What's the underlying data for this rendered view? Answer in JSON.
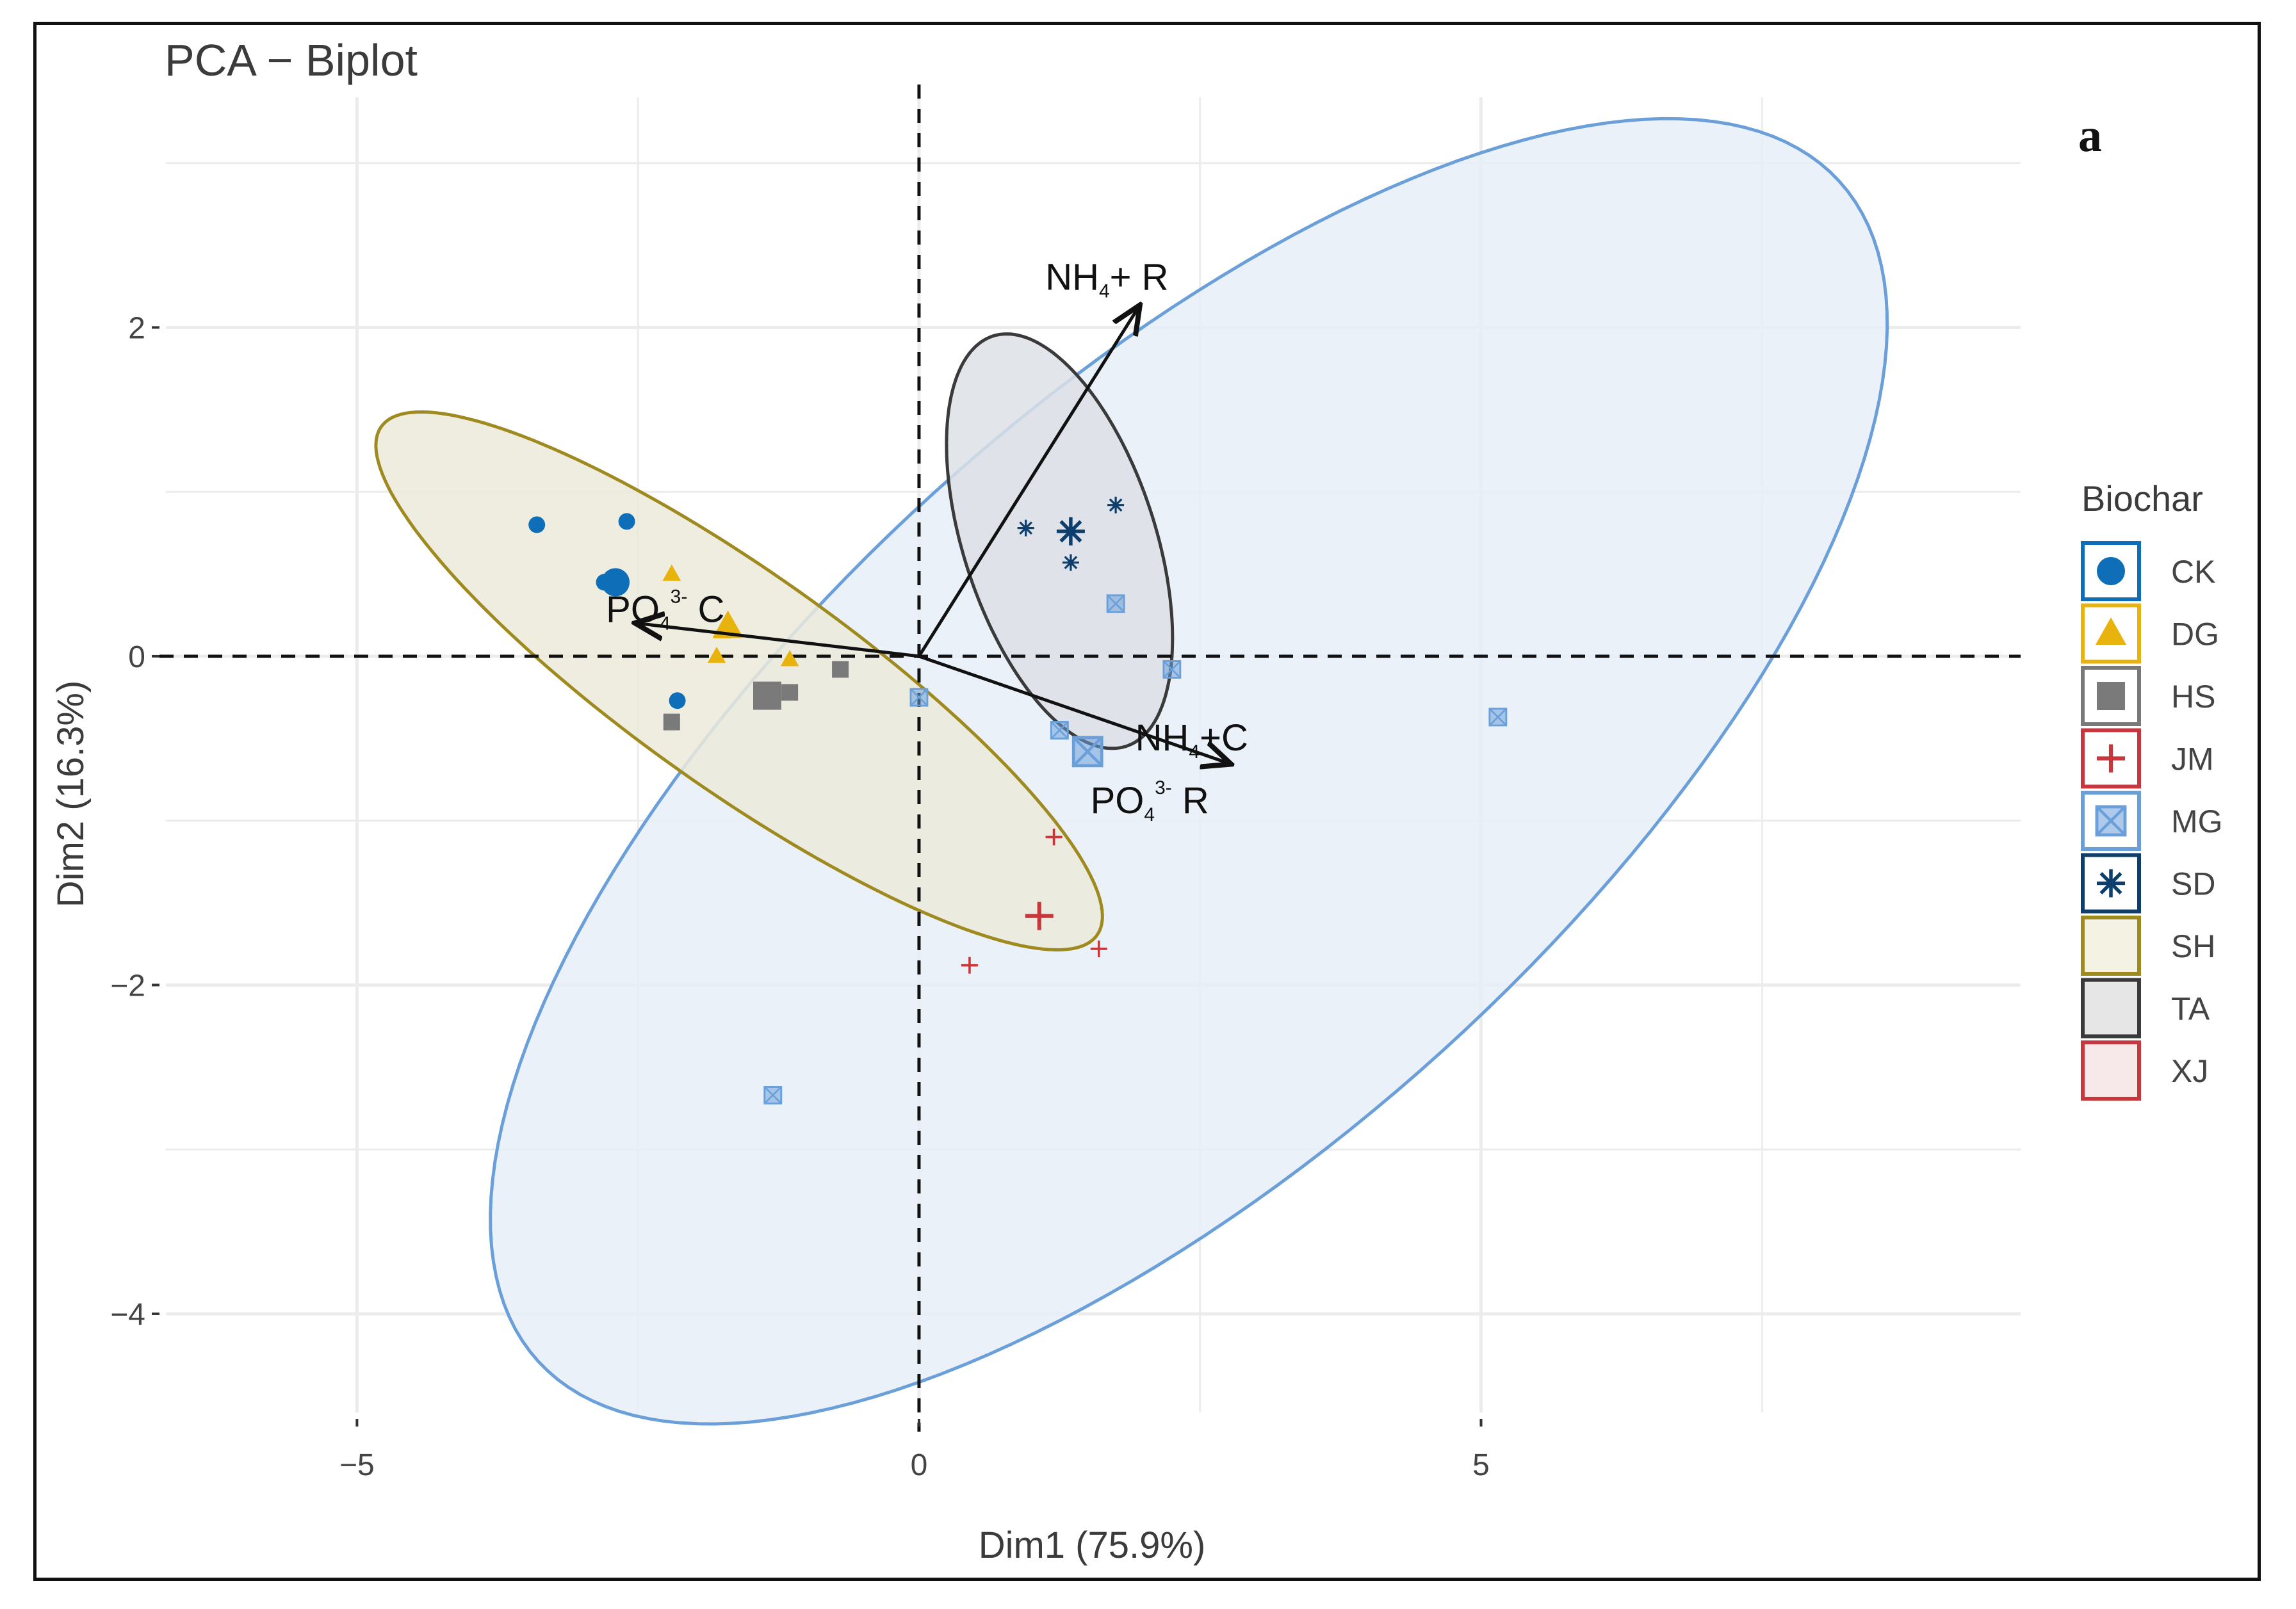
{
  "chart_data": {
    "type": "scatter",
    "title": "PCA − Biplot",
    "panel_label": "a",
    "xlabel": "Dim1 (75.9%)",
    "ylabel": "Dim2 (16.3%)",
    "xlim": [
      -6.7,
      9.8
    ],
    "ylim": [
      -4.6,
      3.4
    ],
    "x_ticks": [
      -5,
      0,
      5
    ],
    "y_ticks": [
      2,
      0,
      -2,
      -4
    ],
    "x_tick_labels": [
      "−5",
      "0",
      "5"
    ],
    "y_tick_labels": [
      "2",
      "0",
      "−2",
      "−4"
    ],
    "grid": true,
    "legend": {
      "title": "Biochar",
      "position": "right",
      "items": [
        {
          "label": "CK",
          "shape": "circle",
          "color": "#0E6FB8",
          "fill": "#ffffff"
        },
        {
          "label": "DG",
          "shape": "triangle",
          "color": "#E8B30C",
          "fill": "#ffffff"
        },
        {
          "label": "HS",
          "shape": "square",
          "color": "#7A7A7A",
          "fill": "#ffffff"
        },
        {
          "label": "JM",
          "shape": "plus",
          "color": "#C8373B",
          "fill": "#ffffff"
        },
        {
          "label": "MG",
          "shape": "boxx",
          "color": "#6A9FDA",
          "fill": "#ffffff"
        },
        {
          "label": "SD",
          "shape": "asterisk",
          "color": "#0C3E6E",
          "fill": "#ffffff"
        },
        {
          "label": "SH",
          "shape": "none",
          "color": "#9E8A1E",
          "fill": "#F3F2E3"
        },
        {
          "label": "TA",
          "shape": "none",
          "color": "#3A3A3A",
          "fill": "#E6E6E6"
        },
        {
          "label": "XJ",
          "shape": "none",
          "color": "#C8373B",
          "fill": "#F7E9EA"
        }
      ]
    },
    "series": [
      {
        "name": "CK",
        "shape": "circle",
        "color": "#0E6FB8",
        "points": [
          [
            -3.4,
            0.8
          ],
          [
            -2.6,
            0.82
          ],
          [
            -2.8,
            0.45
          ],
          [
            -2.15,
            -0.27
          ]
        ],
        "centroid": [
          -2.7,
          0.45
        ]
      },
      {
        "name": "DG",
        "shape": "triangle",
        "color": "#E8B30C",
        "points": [
          [
            -2.2,
            0.5
          ],
          [
            -1.8,
            0.0
          ],
          [
            -1.15,
            -0.02
          ],
          [
            -1.75,
            0.15
          ]
        ],
        "centroid": [
          -1.7,
          0.18
        ]
      },
      {
        "name": "HS",
        "shape": "square",
        "color": "#7A7A7A",
        "points": [
          [
            -2.2,
            -0.4
          ],
          [
            -1.15,
            -0.22
          ],
          [
            -0.7,
            -0.08
          ]
        ],
        "centroid": [
          -1.35,
          -0.24
        ]
      },
      {
        "name": "JM",
        "shape": "plus",
        "color": "#C8373B",
        "points": [
          [
            1.2,
            -1.1
          ],
          [
            0.45,
            -1.88
          ],
          [
            1.6,
            -1.78
          ]
        ],
        "centroid": [
          1.07,
          -1.58
        ]
      },
      {
        "name": "MG",
        "shape": "boxx",
        "color": "#6A9FDA",
        "points": [
          [
            1.75,
            0.32
          ],
          [
            2.25,
            -0.08
          ],
          [
            0.0,
            -0.25
          ],
          [
            1.25,
            -0.45
          ],
          [
            5.15,
            -0.37
          ],
          [
            -1.3,
            -2.67
          ]
        ],
        "centroid": [
          1.5,
          -0.58
        ]
      },
      {
        "name": "SD",
        "shape": "asterisk",
        "color": "#0C3E6E",
        "points": [
          [
            0.95,
            0.78
          ],
          [
            1.35,
            0.57
          ],
          [
            1.75,
            0.92
          ]
        ],
        "centroid": [
          1.35,
          0.76
        ]
      }
    ],
    "ellipses": [
      {
        "name": "MG",
        "color": "#6A9FDA",
        "fill": "#E7EEF7",
        "center": [
          2.4,
          -0.7
        ],
        "semi_axes": [
          6.9,
          2.6
        ],
        "angle_deg": 28
      },
      {
        "name": "SH",
        "color": "#9E8A1E",
        "fill": "#ECEADA",
        "center": [
          -1.6,
          -0.15
        ],
        "semi_axes": [
          3.55,
          0.72
        ],
        "angle_deg": -25
      },
      {
        "name": "TA",
        "color": "#3A3A3A",
        "fill": "#DDE0E6",
        "center": [
          1.25,
          0.7
        ],
        "semi_axes": [
          1.4,
          0.8
        ],
        "angle_deg": -58
      }
    ],
    "arrows": [
      {
        "label_main": "NH",
        "label_sub": "4",
        "label_sup": "",
        "label_rest": "+ R",
        "x": 1.95,
        "y": 2.12
      },
      {
        "label_main": "PO",
        "label_sub": "4",
        "label_sup": "3-",
        "label_rest": " C",
        "x": -2.5,
        "y": 0.2
      },
      {
        "label_main": "NH",
        "label_sub": "4",
        "label_sup": "",
        "label_rest": "+C",
        "x": 2.75,
        "y": -0.65
      },
      {
        "label_main": "PO",
        "label_sub": "4",
        "label_sup": "3-",
        "label_rest": " R",
        "x": 2.75,
        "y": -0.65
      }
    ]
  }
}
